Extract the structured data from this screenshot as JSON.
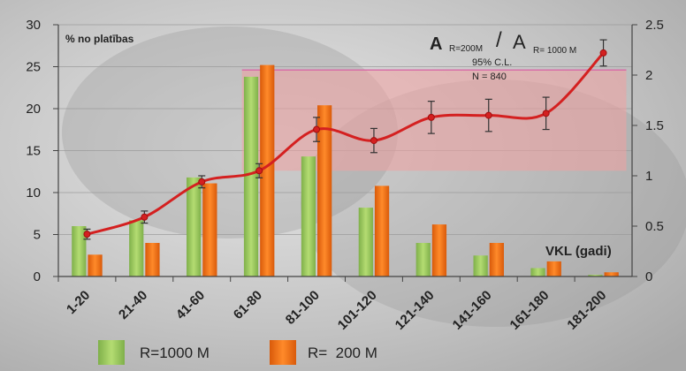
{
  "chart_data": {
    "type": "bar",
    "categories": [
      "1-20",
      "21-40",
      "41-60",
      "61-80",
      "81-100",
      "101-120",
      "121-140",
      "141-160",
      "161-180",
      "181-200"
    ],
    "series": [
      {
        "name": "R=1000 M",
        "color": "#8fbf4f",
        "axis": "left",
        "values": [
          6.0,
          6.7,
          11.8,
          23.8,
          14.3,
          8.2,
          4.0,
          2.5,
          1.0,
          0.2
        ]
      },
      {
        "name": "R=  200 M",
        "color": "#ee6b12",
        "axis": "left",
        "values": [
          2.6,
          4.0,
          11.1,
          25.2,
          20.4,
          10.8,
          6.2,
          4.0,
          1.8,
          0.5
        ]
      }
    ],
    "ratio_series": {
      "color": "#d42020",
      "axis": "right",
      "values": [
        0.42,
        0.59,
        0.94,
        1.05,
        1.46,
        1.35,
        1.58,
        1.6,
        1.62,
        2.22
      ],
      "error": [
        0.05,
        0.06,
        0.06,
        0.07,
        0.12,
        0.12,
        0.16,
        0.16,
        0.16,
        0.13
      ]
    },
    "y_left": {
      "ylim": [
        0,
        30
      ],
      "ticks": [
        0,
        5,
        10,
        15,
        20,
        25,
        30
      ],
      "label": "% no platības"
    },
    "y_right": {
      "ylim": [
        0,
        2.5
      ],
      "ticks": [
        0,
        0.5,
        1,
        1.5,
        2,
        2.5
      ]
    },
    "band": {
      "y_from": 1.05,
      "y_to": 2.05,
      "color": "#f0a0a0"
    },
    "xlabel": "VKL (gadi)",
    "ratio_title": {
      "a1": "A",
      "sub1": "R=200M",
      "slash": "/",
      "a2": "A",
      "sub2": "R= 1000 M"
    },
    "annotations": {
      "ci": "95% C.L.",
      "n": "N = 840"
    },
    "grid": true,
    "legend": {
      "placement": "bottom",
      "items": [
        "R=1000 M",
        "R=  200 M"
      ]
    }
  }
}
